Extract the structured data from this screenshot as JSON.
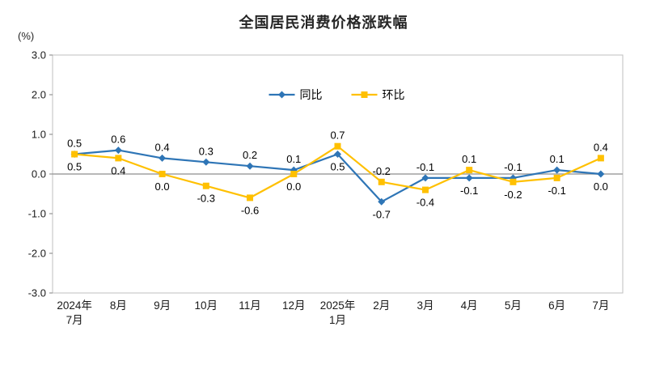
{
  "title": "全国居民消费价格涨跌幅",
  "y_unit_label": "(%)",
  "chart_data": {
    "type": "line",
    "title": "全国居民消费价格涨跌幅",
    "ylabel": "(%)",
    "xlabel": "",
    "ylim": [
      -3.0,
      3.0
    ],
    "y_ticks": [
      3.0,
      2.0,
      1.0,
      0.0,
      -1.0,
      -2.0,
      -3.0
    ],
    "grid": false,
    "legend_position": "top-center-inside",
    "categories": [
      "2024年7月",
      "8月",
      "9月",
      "10月",
      "11月",
      "12月",
      "2025年1月",
      "2月",
      "3月",
      "4月",
      "5月",
      "6月",
      "7月"
    ],
    "x_tick_lines": [
      [
        "2024年",
        "7月"
      ],
      [
        "8月"
      ],
      [
        "9月"
      ],
      [
        "10月"
      ],
      [
        "11月"
      ],
      [
        "12月"
      ],
      [
        "2025年",
        "1月"
      ],
      [
        "2月"
      ],
      [
        "3月"
      ],
      [
        "4月"
      ],
      [
        "5月"
      ],
      [
        "6月"
      ],
      [
        "7月"
      ]
    ],
    "series": [
      {
        "id": "yoy",
        "name": "同比",
        "color": "#2E75B6",
        "marker": "diamond",
        "values": [
          0.5,
          0.6,
          0.4,
          0.3,
          0.2,
          0.1,
          0.5,
          -0.7,
          -0.1,
          -0.1,
          -0.1,
          0.1,
          0.0
        ]
      },
      {
        "id": "mom",
        "name": "环比",
        "color": "#FFC000",
        "marker": "square",
        "values": [
          0.5,
          0.4,
          0.0,
          -0.3,
          -0.6,
          0.0,
          0.7,
          -0.2,
          -0.4,
          0.1,
          -0.2,
          -0.1,
          0.4
        ]
      }
    ],
    "colors": {
      "frame": "#bfbfbf",
      "zero_line": "#a0a0a0",
      "tick": "#808080",
      "text": "#1a1a1a"
    }
  }
}
